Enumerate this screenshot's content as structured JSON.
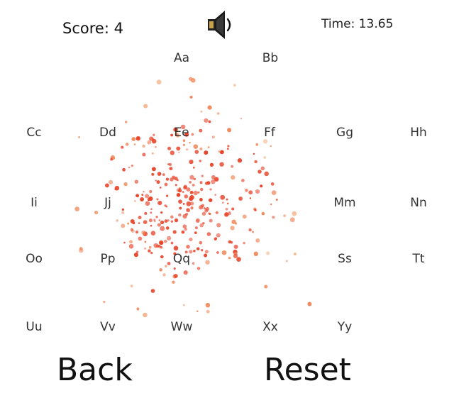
{
  "hud": {
    "score": "Score: 4",
    "time": "Time: 13.65",
    "sound_icon": "speaker-icon"
  },
  "letters": [
    {
      "label": "Aa"
    },
    {
      "label": "Bb"
    },
    {
      "label": "Cc"
    },
    {
      "label": "Dd"
    },
    {
      "label": "Ee"
    },
    {
      "label": "Ff"
    },
    {
      "label": "Gg"
    },
    {
      "label": "Hh"
    },
    {
      "label": "Ii"
    },
    {
      "label": "Jj"
    },
    {
      "label": "Mm"
    },
    {
      "label": "Nn"
    },
    {
      "label": "Oo"
    },
    {
      "label": "Pp"
    },
    {
      "label": "Qq"
    },
    {
      "label": "Ss"
    },
    {
      "label": "Tt"
    },
    {
      "label": "Uu"
    },
    {
      "label": "Vv"
    },
    {
      "label": "Ww"
    },
    {
      "label": "Xx"
    },
    {
      "label": "Yy"
    }
  ],
  "buttons": {
    "back": "Back",
    "reset": "Reset"
  },
  "colors": {
    "particle_main": "#e8452b",
    "particle_light": "#f08a5d",
    "particle_pale": "#f5b38a"
  }
}
